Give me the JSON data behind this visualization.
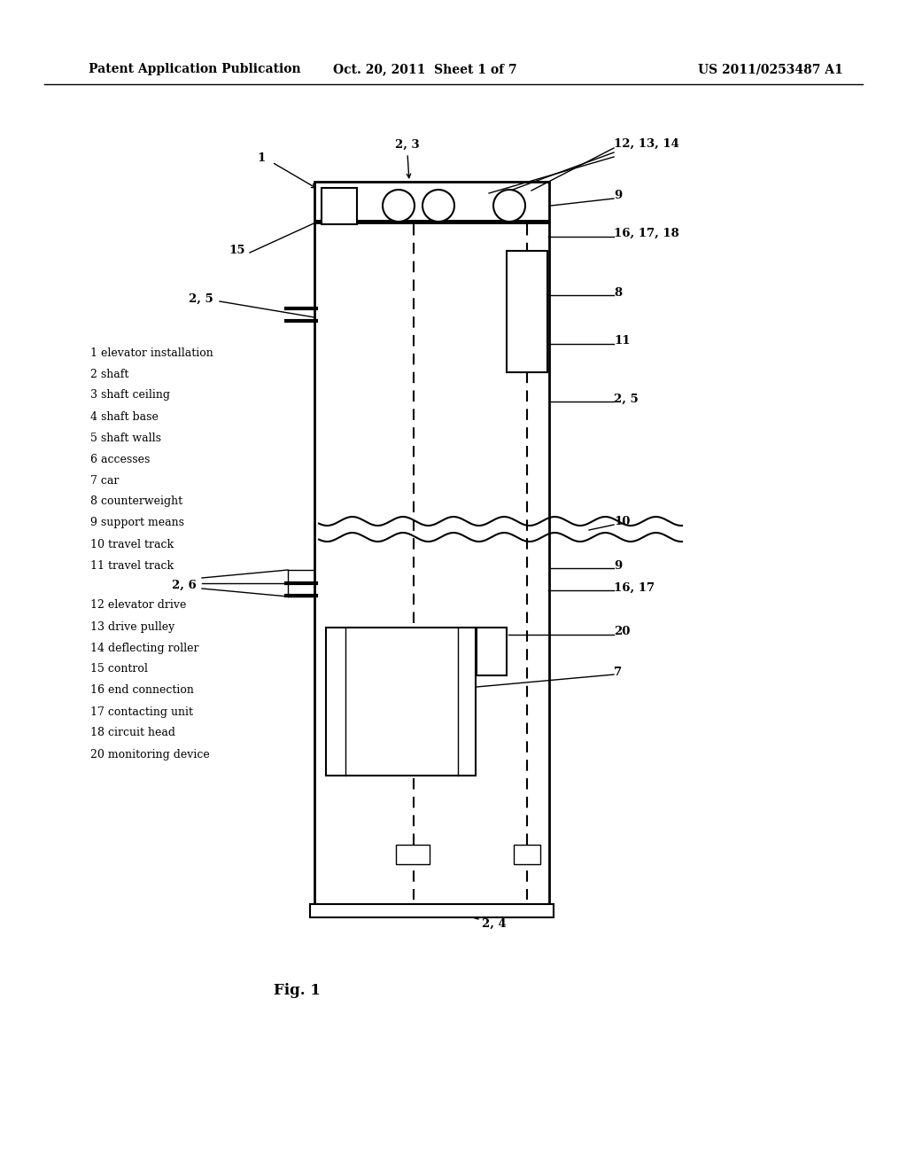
{
  "bg_color": "#ffffff",
  "header_left": "Patent Application Publication",
  "header_center": "Oct. 20, 2011  Sheet 1 of 7",
  "header_right": "US 2011/0253487 A1",
  "fig_label": "Fig. 1",
  "legend_left": [
    "1 elevator installation",
    "2 shaft",
    "3 shaft ceiling",
    "4 shaft base",
    "5 shaft walls",
    "6 accesses",
    "7 car",
    "8 counterweight",
    "9 support means",
    "10 travel track",
    "11 travel track"
  ],
  "legend_left2": [
    "12 elevator drive",
    "13 drive pulley",
    "14 deflecting roller",
    "15 control",
    "16 end connection",
    "17 contacting unit",
    "18 circuit head",
    "20 monitoring device"
  ]
}
